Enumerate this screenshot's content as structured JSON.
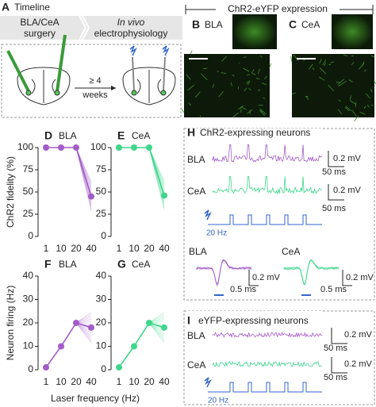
{
  "panel_a": {
    "label": "A",
    "title": "Timeline",
    "step1": [
      "BLA/CeA",
      "surgery"
    ],
    "step2": [
      "In vivo",
      "electrophysiology"
    ],
    "interval": [
      "≥ 4",
      "weeks"
    ]
  },
  "expression": {
    "title": "ChR2-eYFP expression",
    "panels": [
      {
        "label": "B",
        "region": "BLA"
      },
      {
        "label": "C",
        "region": "CeA"
      }
    ]
  },
  "axes": {
    "fidelity_label": "ChR2 fidelity (%)",
    "firing_label": "Neuron firing (Hz)",
    "x_label": "Laser frequency (Hz)"
  },
  "chart_data": [
    {
      "type": "line",
      "label": "D",
      "title": "BLA",
      "categories": [
        "1",
        "10",
        "20",
        "40"
      ],
      "values": [
        100,
        100,
        100,
        45
      ],
      "color": "#a45cc9",
      "ylim": [
        0,
        100
      ],
      "yticks": [
        0,
        25,
        50,
        75,
        100
      ]
    },
    {
      "type": "line",
      "label": "E",
      "title": "CeA",
      "categories": [
        "1",
        "10",
        "20",
        "40"
      ],
      "values": [
        100,
        100,
        100,
        46
      ],
      "color": "#3fd68c",
      "ylim": [
        0,
        100
      ],
      "yticks": [
        0,
        25,
        50,
        75,
        100
      ]
    },
    {
      "type": "line",
      "label": "F",
      "title": "BLA",
      "categories": [
        "1",
        "10",
        "20",
        "40"
      ],
      "values": [
        1,
        10,
        20,
        18
      ],
      "color": "#a45cc9",
      "ylim": [
        0,
        40
      ],
      "yticks": [
        0,
        10,
        20,
        30,
        40
      ]
    },
    {
      "type": "line",
      "label": "G",
      "title": "CeA",
      "categories": [
        "1",
        "10",
        "20",
        "40"
      ],
      "values": [
        1,
        10,
        20,
        18
      ],
      "color": "#3fd68c",
      "ylim": [
        0,
        40
      ],
      "yticks": [
        0,
        10,
        20,
        30,
        40
      ]
    }
  ],
  "panel_h": {
    "label": "H",
    "title": "ChR2-expressing neurons",
    "rows": [
      {
        "region": "BLA",
        "amp": "0.2 mV",
        "time": "50 ms"
      },
      {
        "region": "CeA",
        "amp": "0.2 mV",
        "time": "50 ms"
      }
    ],
    "laser": "20 Hz",
    "spikes": [
      {
        "region": "BLA",
        "amp": "0.2 mV",
        "time": "0.5 ms"
      },
      {
        "region": "CeA",
        "amp": "0.2 mV",
        "time": "0.5 ms"
      }
    ]
  },
  "panel_i": {
    "label": "I",
    "title": "eYFP-expressing neurons",
    "rows": [
      {
        "region": "BLA",
        "amp": "0.2 mV",
        "time": "50 ms"
      },
      {
        "region": "CeA",
        "amp": "0.2 mV",
        "time": "50 ms"
      }
    ],
    "laser": "20 Hz"
  }
}
